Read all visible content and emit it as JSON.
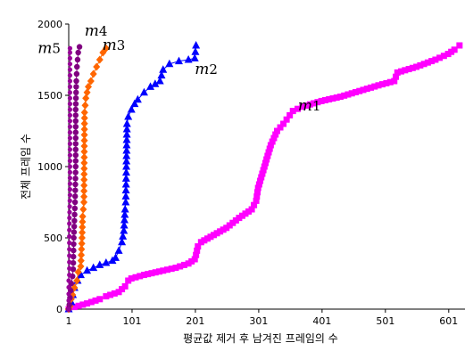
{
  "chart_data": {
    "type": "line",
    "xlabel": "평균값 제거 후 남겨진 프레임의 수",
    "ylabel": "전체 프레임 수",
    "xlim": [
      1,
      621
    ],
    "ylim": [
      0,
      2000
    ],
    "x_ticks": [
      "1",
      "101",
      "201",
      "301",
      "401",
      "501",
      "601"
    ],
    "x_tick_values": [
      1,
      101,
      201,
      301,
      401,
      501,
      601
    ],
    "y_ticks": [
      "0",
      "500",
      "1000",
      "1500",
      "2000"
    ],
    "y_tick_values": [
      0,
      500,
      1000,
      1500,
      2000
    ],
    "grid": false,
    "legend": "none",
    "series": [
      {
        "name": "m1",
        "label_main": "m",
        "label_sub": "1",
        "color": "#ff00ff",
        "marker": "square",
        "label_at": [
          363,
          1395
        ],
        "points": [
          [
            1,
            0
          ],
          [
            10,
            15
          ],
          [
            30,
            40
          ],
          [
            50,
            70
          ],
          [
            60,
            90
          ],
          [
            80,
            120
          ],
          [
            90,
            160
          ],
          [
            95,
            200
          ],
          [
            100,
            215
          ],
          [
            120,
            240
          ],
          [
            150,
            270
          ],
          [
            170,
            290
          ],
          [
            190,
            320
          ],
          [
            200,
            350
          ],
          [
            202,
            380
          ],
          [
            205,
            440
          ],
          [
            210,
            470
          ],
          [
            230,
            520
          ],
          [
            250,
            570
          ],
          [
            270,
            640
          ],
          [
            290,
            700
          ],
          [
            297,
            760
          ],
          [
            300,
            850
          ],
          [
            310,
            1000
          ],
          [
            320,
            1150
          ],
          [
            330,
            1250
          ],
          [
            340,
            1300
          ],
          [
            350,
            1360
          ],
          [
            355,
            1390
          ],
          [
            370,
            1420
          ],
          [
            400,
            1460
          ],
          [
            430,
            1490
          ],
          [
            460,
            1530
          ],
          [
            490,
            1570
          ],
          [
            515,
            1600
          ],
          [
            520,
            1660
          ],
          [
            550,
            1700
          ],
          [
            580,
            1750
          ],
          [
            600,
            1790
          ],
          [
            610,
            1820
          ],
          [
            618,
            1850
          ]
        ]
      },
      {
        "name": "m2",
        "label_main": "m",
        "label_sub": "2",
        "color": "#0000ff",
        "marker": "triangle",
        "label_at": [
          200,
          1649
        ],
        "points": [
          [
            1,
            0
          ],
          [
            5,
            50
          ],
          [
            10,
            150
          ],
          [
            15,
            200
          ],
          [
            20,
            240
          ],
          [
            30,
            270
          ],
          [
            40,
            290
          ],
          [
            50,
            310
          ],
          [
            60,
            325
          ],
          [
            70,
            340
          ],
          [
            75,
            360
          ],
          [
            80,
            410
          ],
          [
            85,
            470
          ],
          [
            88,
            550
          ],
          [
            90,
            700
          ],
          [
            91,
            750
          ],
          [
            92,
            1000
          ],
          [
            93,
            1300
          ],
          [
            95,
            1350
          ],
          [
            100,
            1400
          ],
          [
            105,
            1440
          ],
          [
            110,
            1470
          ],
          [
            120,
            1520
          ],
          [
            130,
            1560
          ],
          [
            145,
            1600
          ],
          [
            150,
            1680
          ],
          [
            160,
            1720
          ],
          [
            175,
            1740
          ],
          [
            190,
            1750
          ],
          [
            200,
            1760
          ],
          [
            202,
            1850
          ]
        ]
      },
      {
        "name": "m3",
        "label_main": "m",
        "label_sub": "3",
        "color": "#ff6600",
        "marker": "diamond",
        "label_at": [
          54,
          1819
        ],
        "points": [
          [
            1,
            0
          ],
          [
            3,
            20
          ],
          [
            5,
            70
          ],
          [
            7,
            100
          ],
          [
            10,
            150
          ],
          [
            14,
            200
          ],
          [
            16,
            260
          ],
          [
            20,
            300
          ],
          [
            22,
            500
          ],
          [
            23,
            650
          ],
          [
            24,
            700
          ],
          [
            25,
            750
          ],
          [
            26,
            1380
          ],
          [
            28,
            1480
          ],
          [
            32,
            1560
          ],
          [
            36,
            1600
          ],
          [
            40,
            1650
          ],
          [
            45,
            1700
          ],
          [
            50,
            1750
          ],
          [
            55,
            1800
          ],
          [
            60,
            1830
          ]
        ]
      },
      {
        "name": "m4",
        "label_main": "m",
        "label_sub": "4",
        "color": "#800080",
        "marker": "circle",
        "label_at": [
          26,
          1919
        ],
        "points": [
          [
            1,
            0
          ],
          [
            2,
            30
          ],
          [
            3,
            80
          ],
          [
            4,
            130
          ],
          [
            5,
            180
          ],
          [
            7,
            230
          ],
          [
            8,
            280
          ],
          [
            9,
            500
          ],
          [
            10,
            620
          ],
          [
            11,
            750
          ],
          [
            12,
            1000
          ],
          [
            12,
            1400
          ],
          [
            13,
            1600
          ],
          [
            14,
            1700
          ],
          [
            15,
            1750
          ],
          [
            16,
            1800
          ],
          [
            18,
            1840
          ]
        ]
      },
      {
        "name": "m5",
        "label_main": "m",
        "label_sub": "5",
        "color": "#990099",
        "marker": "circle-small",
        "label_at": [
          -48,
          1798
        ],
        "points": [
          [
            1,
            0
          ],
          [
            1,
            60
          ],
          [
            1,
            200
          ],
          [
            2,
            240
          ],
          [
            2,
            420
          ],
          [
            2,
            600
          ],
          [
            3,
            800
          ],
          [
            3,
            1000
          ],
          [
            3,
            1400
          ],
          [
            3,
            1600
          ],
          [
            3,
            1800
          ],
          [
            3,
            1830
          ]
        ]
      }
    ]
  }
}
